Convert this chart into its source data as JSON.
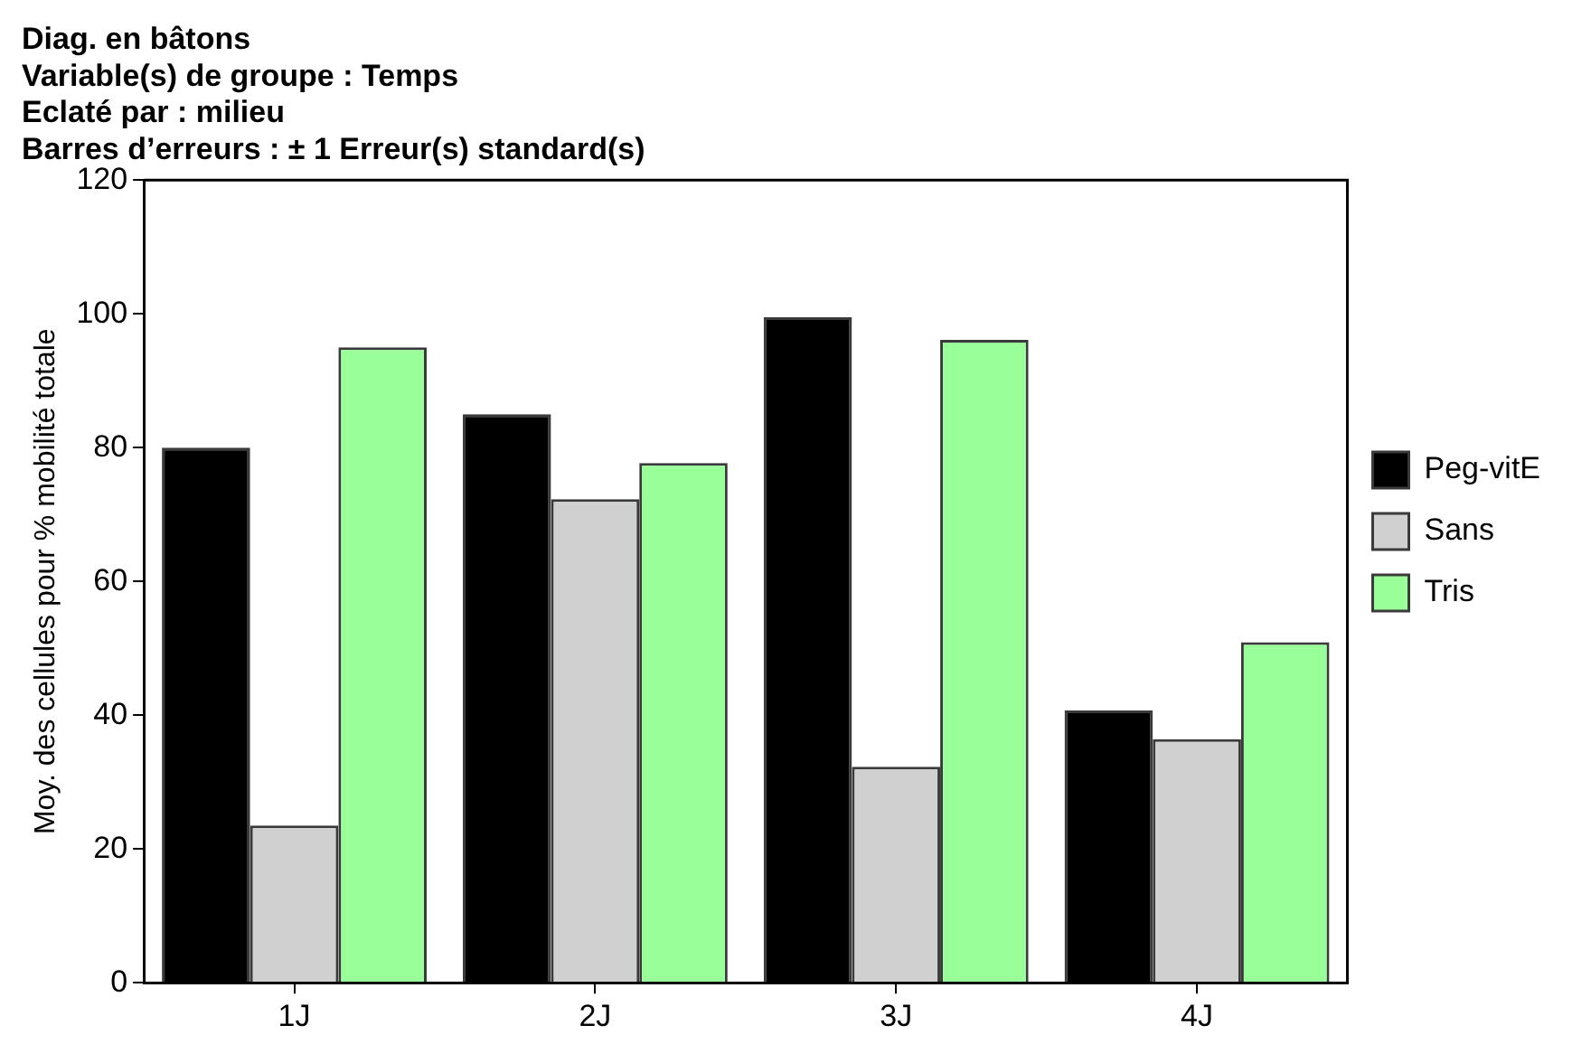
{
  "chart_data": {
    "type": "bar",
    "title": "Diag. en bâtons\nVariable(s) de groupe : Temps\nEclaté par : milieu\nBarres d’erreurs : ± 1 Erreur(s) standard(s)",
    "ylabel": "Moy. des cellules pour % mobilité totale",
    "categories": [
      "1J",
      "2J",
      "3J",
      "4J"
    ],
    "series": [
      {
        "name": "Peg-vitE",
        "color": "#000000",
        "values": [
          80,
          85,
          99.5,
          40.7
        ]
      },
      {
        "name": "Sans",
        "color": "#d0d0d0",
        "values": [
          23.5,
          72.3,
          32.3,
          36.4
        ]
      },
      {
        "name": "Tris",
        "color": "#99ff99",
        "values": [
          95,
          77.7,
          96.1,
          50.9
        ]
      }
    ],
    "ylim": [
      0,
      120
    ],
    "yticks": [
      0,
      20,
      40,
      60,
      80,
      100,
      120
    ],
    "grid": false,
    "legend": "right"
  }
}
